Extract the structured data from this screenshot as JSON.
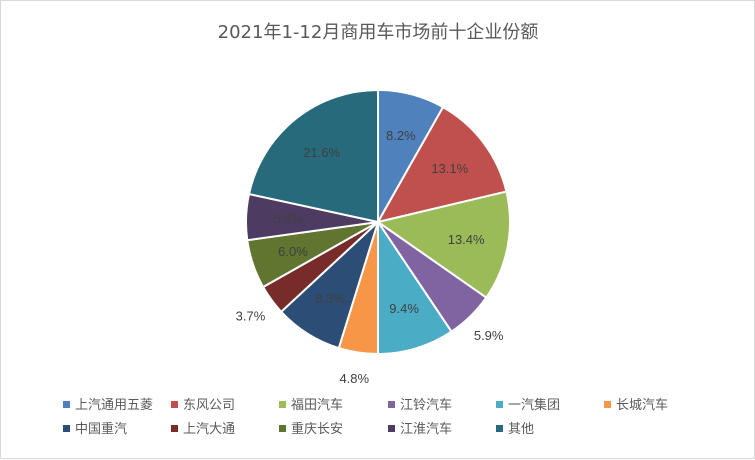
{
  "chart_data": {
    "type": "pie",
    "title": "2021年1-12月商用车市场前十企业份额",
    "categories": [
      "上汽通用五菱",
      "东风公司",
      "福田汽车",
      "江铃汽车",
      "一汽集团",
      "长城汽车",
      "中国重汽",
      "上汽大通",
      "重庆长安",
      "江淮汽车",
      "其他"
    ],
    "values": [
      8.2,
      13.1,
      13.4,
      5.9,
      9.4,
      4.8,
      8.3,
      3.7,
      6.0,
      5.6,
      21.6
    ],
    "labels": [
      "8.2%",
      "13.1%",
      "13.4%",
      "5.9%",
      "9.4%",
      "4.8%",
      "8.3%",
      "3.7%",
      "6.0%",
      "5.6%",
      "21.6%"
    ],
    "colors": [
      "#4f81bd",
      "#c0504d",
      "#9bbb59",
      "#8064a2",
      "#4bacc6",
      "#f79646",
      "#2c4d75",
      "#772c2a",
      "#5f7530",
      "#4d3b62",
      "#276a7c"
    ],
    "legend_position": "bottom"
  }
}
